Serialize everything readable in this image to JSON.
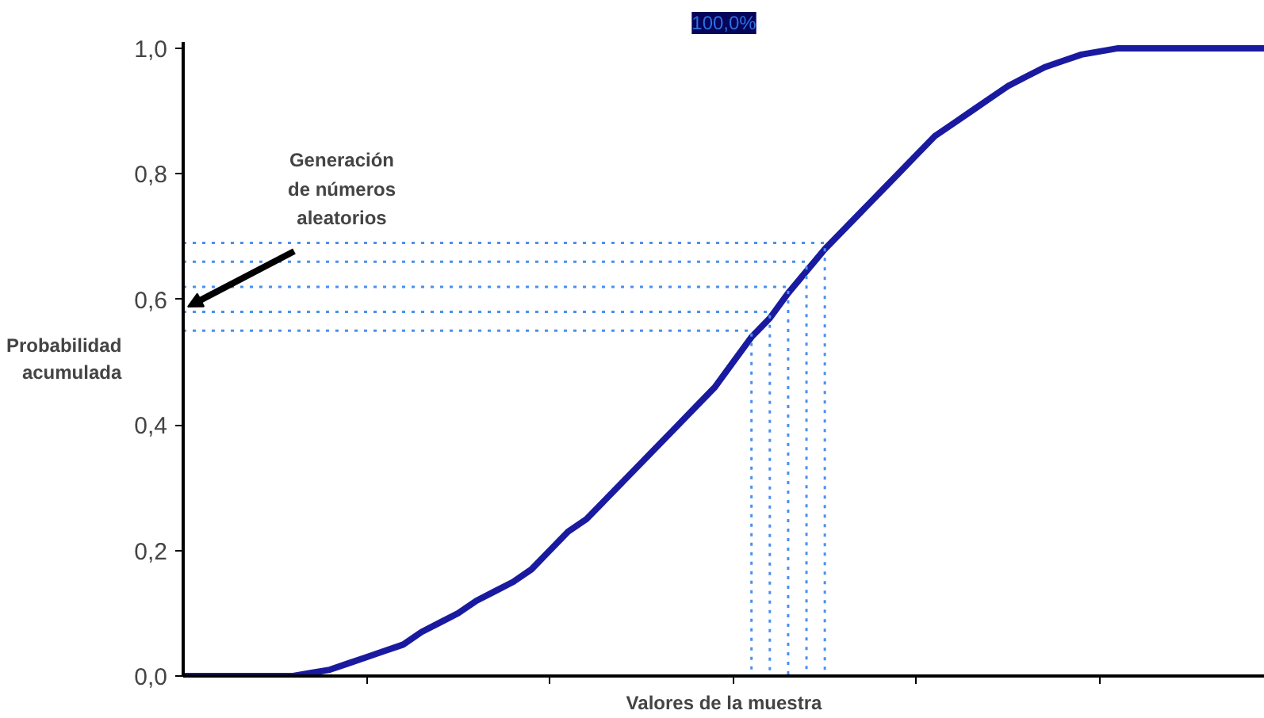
{
  "chart_data": {
    "type": "line",
    "title": "100,0%",
    "xlabel": "Valores de la muestra",
    "ylabel": "Probabilidad acumulada",
    "categories": [
      null,
      null,
      null,
      null,
      null,
      null,
      null,
      null,
      null,
      null,
      null,
      null,
      null,
      null,
      null,
      null,
      null,
      null,
      null,
      null,
      null,
      null,
      null,
      null,
      null,
      null,
      null,
      null,
      null,
      null,
      null,
      null,
      null,
      null,
      null,
      null,
      null,
      null,
      null,
      null,
      null,
      null,
      null,
      null,
      null,
      null,
      null,
      null,
      null,
      null,
      null,
      null,
      null,
      null,
      null,
      null,
      null,
      null,
      null,
      null
    ],
    "ylim": [
      0,
      1.01
    ],
    "yticks": [
      {
        "value": 0,
        "label": "0,0"
      },
      {
        "value": 0.2,
        "label": "0,2"
      },
      {
        "value": 0.4,
        "label": "0,4"
      },
      {
        "value": 0.6,
        "label": "0,6"
      },
      {
        "value": 0.8,
        "label": "0,8"
      },
      {
        "value": 1,
        "label": "1,0"
      }
    ],
    "grid": false,
    "marker": "none",
    "line_style": "solid",
    "series": [
      {
        "color": "#1a1aa0",
        "values": [
          0,
          0,
          0,
          0,
          0,
          0,
          0,
          0.005,
          0.01,
          0.02,
          0.03,
          0.04,
          0.05,
          0.07,
          0.085,
          0.1,
          0.12,
          0.135,
          0.15,
          0.17,
          0.2,
          0.23,
          0.25,
          0.28,
          0.31,
          0.34,
          0.37,
          0.4,
          0.43,
          0.46,
          0.5,
          0.54,
          0.57,
          0.61,
          0.645,
          0.68,
          0.71,
          0.74,
          0.77,
          0.8,
          0.83,
          0.86,
          0.88,
          0.9,
          0.92,
          0.94,
          0.955,
          0.97,
          0.98,
          0.99,
          0.995,
          1,
          1,
          1,
          1,
          1,
          1,
          1,
          1,
          1
        ]
      },
      {
        "type": "step",
        "color": "#4a90f0",
        "line_style": "dotted",
        "values": [
          0.69,
          0.69,
          0.69,
          0.69,
          0.69,
          0.69,
          0.69,
          0.69,
          0.69,
          0.69,
          0.69,
          0.69,
          0.69,
          0.69,
          0.69,
          0.69,
          0.69,
          0.69,
          0.69,
          0.69,
          0.69,
          0.69,
          0.69,
          0.69,
          0.69,
          0.69,
          0.69,
          0.69,
          0.69,
          0.69,
          0.69,
          0.69,
          0.69,
          0.69,
          0.69,
          0,
          null,
          null,
          null,
          null,
          null,
          null,
          null,
          null,
          null,
          null,
          null,
          null,
          null,
          null,
          null,
          null,
          null,
          null,
          null,
          null,
          null,
          null,
          null,
          null
        ]
      },
      {
        "type": "step",
        "color": "#4a90f0",
        "line_style": "dotted",
        "values": [
          0.66,
          0.66,
          0.66,
          0.66,
          0.66,
          0.66,
          0.66,
          0.66,
          0.66,
          0.66,
          0.66,
          0.66,
          0.66,
          0.66,
          0.66,
          0.66,
          0.66,
          0.66,
          0.66,
          0.66,
          0.66,
          0.66,
          0.66,
          0.66,
          0.66,
          0.66,
          0.66,
          0.66,
          0.66,
          0.66,
          0.66,
          0.66,
          0.66,
          0.66,
          0,
          null,
          null,
          null,
          null,
          null,
          null,
          null,
          null,
          null,
          null,
          null,
          null,
          null,
          null,
          null,
          null,
          null,
          null,
          null,
          null,
          null,
          null,
          null,
          null,
          null
        ]
      },
      {
        "type": "step",
        "color": "#4a90f0",
        "line_style": "dotted",
        "values": [
          0.62,
          0.62,
          0.62,
          0.62,
          0.62,
          0.62,
          0.62,
          0.62,
          0.62,
          0.62,
          0.62,
          0.62,
          0.62,
          0.62,
          0.62,
          0.62,
          0.62,
          0.62,
          0.62,
          0.62,
          0.62,
          0.62,
          0.62,
          0.62,
          0.62,
          0.62,
          0.62,
          0.62,
          0.62,
          0.62,
          0.62,
          0.62,
          0.62,
          0,
          null,
          null,
          null,
          null,
          null,
          null,
          null,
          null,
          null,
          null,
          null,
          null,
          null,
          null,
          null,
          null,
          null,
          null,
          null,
          null,
          null,
          null,
          null,
          null,
          null,
          null
        ]
      },
      {
        "type": "step",
        "color": "#4a90f0",
        "line_style": "dotted",
        "values": [
          0.58,
          0.58,
          0.58,
          0.58,
          0.58,
          0.58,
          0.58,
          0.58,
          0.58,
          0.58,
          0.58,
          0.58,
          0.58,
          0.58,
          0.58,
          0.58,
          0.58,
          0.58,
          0.58,
          0.58,
          0.58,
          0.58,
          0.58,
          0.58,
          0.58,
          0.58,
          0.58,
          0.58,
          0.58,
          0.58,
          0.58,
          0.58,
          0,
          null,
          null,
          null,
          null,
          null,
          null,
          null,
          null,
          null,
          null,
          null,
          null,
          null,
          null,
          null,
          null,
          null,
          null,
          null,
          null,
          null,
          null,
          null,
          null,
          null,
          null,
          null
        ]
      },
      {
        "type": "step",
        "color": "#4a90f0",
        "line_style": "dotted",
        "values": [
          0.55,
          0.55,
          0.55,
          0.55,
          0.55,
          0.55,
          0.55,
          0.55,
          0.55,
          0.55,
          0.55,
          0.55,
          0.55,
          0.55,
          0.55,
          0.55,
          0.55,
          0.55,
          0.55,
          0.55,
          0.55,
          0.55,
          0.55,
          0.55,
          0.55,
          0.55,
          0.55,
          0.55,
          0.55,
          0.55,
          0.55,
          0,
          null,
          null,
          null,
          null,
          null,
          null,
          null,
          null,
          null,
          null,
          null,
          null,
          null,
          null,
          null,
          null,
          null,
          null,
          null,
          null,
          null,
          null,
          null,
          null,
          null,
          null,
          null,
          null
        ]
      }
    ],
    "annotations": [
      "Generación\nde números\naleatorios"
    ]
  }
}
